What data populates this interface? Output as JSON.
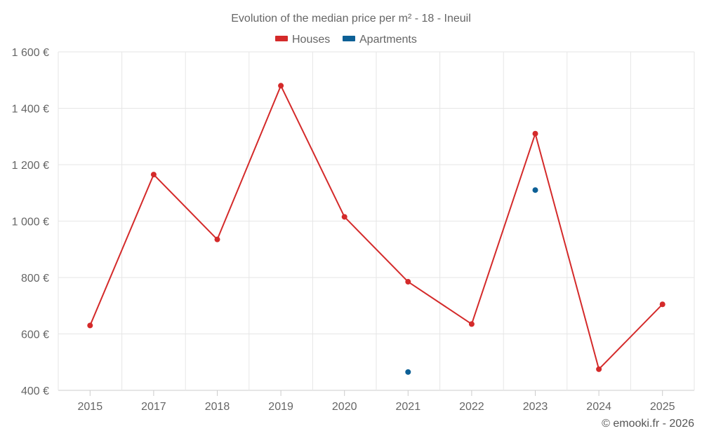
{
  "chart_data": {
    "type": "line",
    "title": "Evolution of the median price per m² - 18 - Ineuil",
    "categories": [
      "2015",
      "2017",
      "2018",
      "2019",
      "2020",
      "2021",
      "2022",
      "2023",
      "2024",
      "2025"
    ],
    "y_ticks": [
      400,
      600,
      800,
      1000,
      1200,
      1400,
      1600
    ],
    "y_tick_labels": [
      "400 €",
      "600 €",
      "800 €",
      "1 000 €",
      "1 200 €",
      "1 400 €",
      "1 600 €"
    ],
    "ylim": [
      400,
      1600
    ],
    "grid": true,
    "legend_position": "top-center",
    "series": [
      {
        "name": "Houses",
        "color": "#d42a2a",
        "connected": true,
        "values": [
          630,
          1165,
          935,
          1480,
          1015,
          785,
          635,
          1310,
          475,
          705
        ]
      },
      {
        "name": "Apartments",
        "color": "#0d6096",
        "connected": false,
        "values": [
          null,
          null,
          null,
          null,
          null,
          465,
          null,
          1110,
          null,
          null
        ]
      }
    ]
  },
  "credit": "© emooki.fr - 2026"
}
